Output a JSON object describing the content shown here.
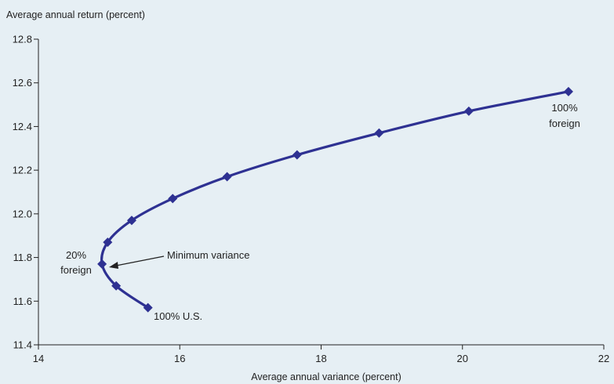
{
  "chart_data": {
    "type": "line",
    "xlabel": "Average annual variance (percent)",
    "ylabel": "Average annual return (percent)",
    "xlim": [
      14,
      22
    ],
    "ylim": [
      11.4,
      12.8
    ],
    "xticks": [
      14,
      16,
      18,
      20,
      22
    ],
    "yticks": [
      11.4,
      11.6,
      11.8,
      12.0,
      12.2,
      12.4,
      12.6,
      12.8
    ],
    "xtick_labels": [
      "14",
      "16",
      "18",
      "20",
      "22"
    ],
    "ytick_labels": [
      "11.4",
      "11.6",
      "11.8",
      "12.0",
      "12.2",
      "12.4",
      "12.6",
      "12.8"
    ],
    "grid": false,
    "series": [
      {
        "color": "#2e3192",
        "marker": "diamond",
        "x": [
          15.55,
          15.1,
          14.9,
          14.98,
          15.32,
          15.9,
          16.67,
          17.66,
          18.82,
          20.09,
          21.5
        ],
        "y": [
          11.57,
          11.67,
          11.77,
          11.87,
          11.97,
          12.07,
          12.17,
          12.27,
          12.37,
          12.47,
          12.56
        ]
      }
    ],
    "annotations": {
      "us": "100% U.S.",
      "foreign_top": "100%",
      "foreign_bottom": "foreign",
      "twenty_top": "20%",
      "twenty_bottom": "foreign",
      "min_var": "Minimum variance"
    }
  }
}
